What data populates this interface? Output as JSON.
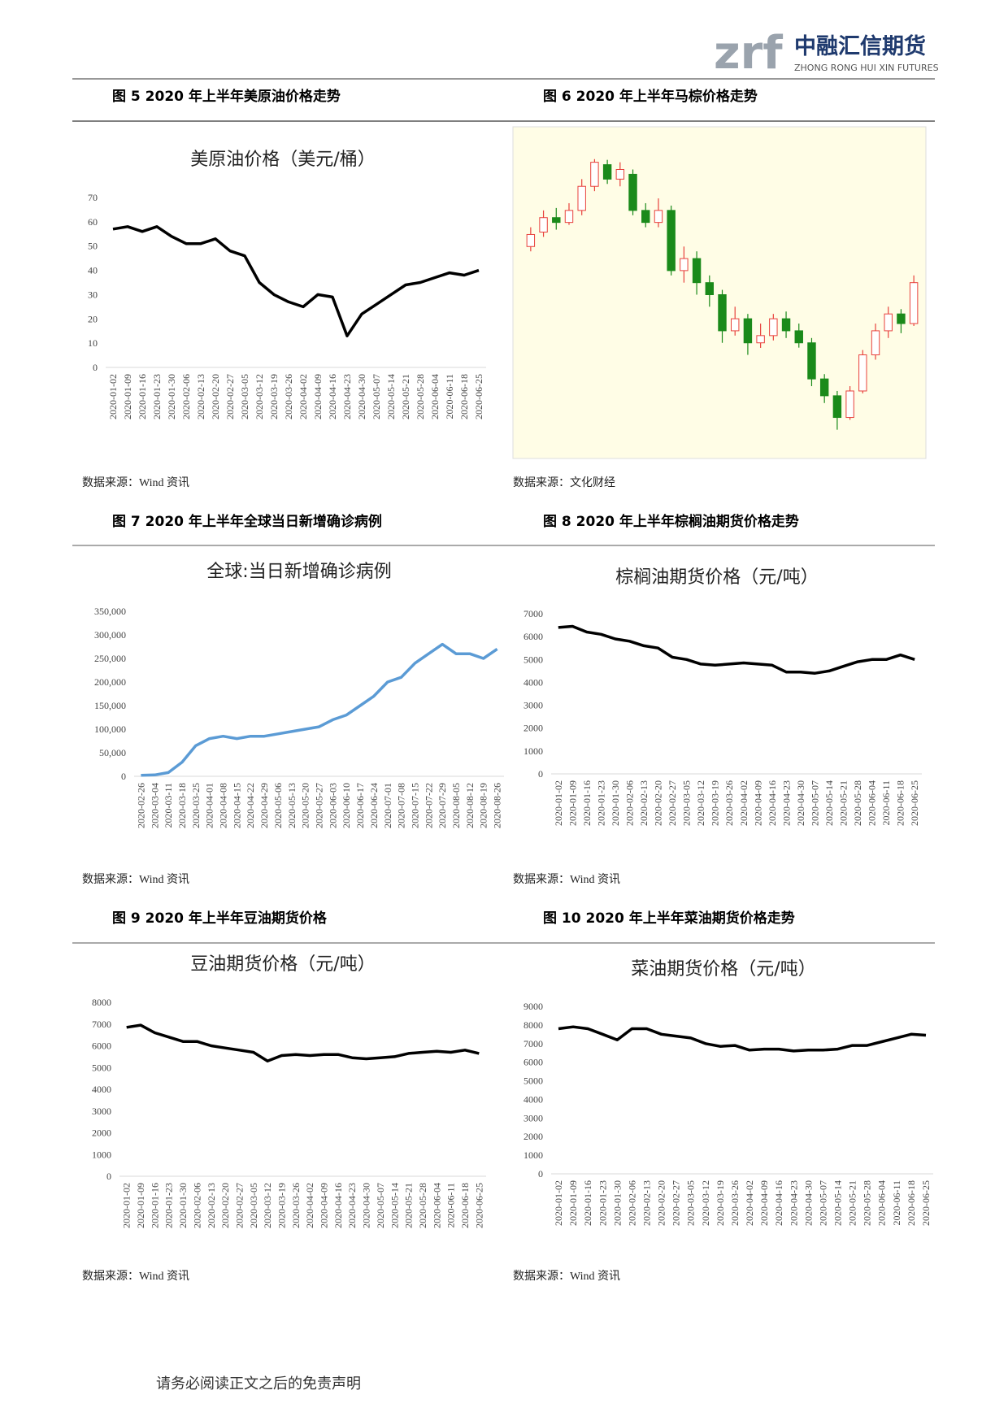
{
  "header": {
    "logo_mark": "zrf",
    "company": "中融汇信期货",
    "company_en": "ZHONG RONG HUI XIN FUTURES"
  },
  "figures": [
    {
      "caption": "图 5 2020 年上半年美原油价格走势",
      "source": "数据来源：Wind 资讯",
      "chart_data": {
        "type": "line",
        "title": "美原油价格（美元/桶）",
        "color": "#000000",
        "categories": [
          "2020-01-02",
          "2020-01-09",
          "2020-01-16",
          "2020-01-23",
          "2020-01-30",
          "2020-02-06",
          "2020-02-13",
          "2020-02-20",
          "2020-02-27",
          "2020-03-05",
          "2020-03-12",
          "2020-03-19",
          "2020-03-26",
          "2020-04-02",
          "2020-04-09",
          "2020-04-16",
          "2020-04-23",
          "2020-04-30",
          "2020-05-07",
          "2020-05-14",
          "2020-05-21",
          "2020-05-28",
          "2020-06-04",
          "2020-06-11",
          "2020-06-18",
          "2020-06-25"
        ],
        "values": [
          57,
          58,
          56,
          58,
          54,
          51,
          51,
          53,
          48,
          46,
          35,
          30,
          27,
          25,
          30,
          29,
          13,
          22,
          26,
          30,
          34,
          35,
          37,
          39,
          38,
          40
        ],
        "ylim": [
          0,
          70
        ],
        "yticks": [
          0,
          10,
          20,
          30,
          40,
          50,
          60,
          70
        ]
      }
    },
    {
      "caption": "图 6 2020 年上半年马棕价格走势",
      "source": "数据来源：文化财经",
      "chart_data": {
        "type": "candlestick",
        "up_color": "#e8413c",
        "down_color": "#1a8a1a",
        "background": "#fffde6",
        "open": [
          2700,
          2760,
          2820,
          2800,
          2850,
          2950,
          3040,
          2980,
          3000,
          2850,
          2800,
          2850,
          2600,
          2650,
          2550,
          2500,
          2350,
          2400,
          2300,
          2330,
          2400,
          2350,
          2300,
          2150,
          2080,
          1990,
          2100,
          2250,
          2350,
          2420,
          2380
        ],
        "close": [
          2750,
          2820,
          2800,
          2850,
          2950,
          3050,
          2980,
          3020,
          2850,
          2800,
          2850,
          2600,
          2650,
          2550,
          2500,
          2350,
          2400,
          2300,
          2330,
          2400,
          2350,
          2300,
          2150,
          2080,
          1990,
          2100,
          2250,
          2350,
          2420,
          2380,
          2550
        ],
        "high": [
          2780,
          2850,
          2860,
          2880,
          2980,
          3063,
          3060,
          3050,
          3020,
          2880,
          2900,
          2870,
          2700,
          2680,
          2580,
          2520,
          2450,
          2420,
          2380,
          2420,
          2430,
          2380,
          2320,
          2170,
          2100,
          2120,
          2270,
          2380,
          2450,
          2440,
          2580
        ],
        "low": [
          2680,
          2740,
          2770,
          2790,
          2830,
          2930,
          2960,
          2950,
          2830,
          2780,
          2780,
          2580,
          2550,
          2500,
          2450,
          2300,
          2330,
          2250,
          2279,
          2310,
          2320,
          2280,
          2120,
          2050,
          1939,
          1980,
          2090,
          2230,
          2320,
          2340,
          2370
        ],
        "ylim": [
          1850,
          3150
        ]
      }
    },
    {
      "caption": "图 7 2020 年上半年全球当日新增确诊病例",
      "source": "数据来源：Wind 资讯",
      "chart_data": {
        "type": "line",
        "title": "全球:当日新增确诊病例",
        "color": "#5b9bd5",
        "categories": [
          "2020-02-26",
          "2020-03-04",
          "2020-03-11",
          "2020-03-18",
          "2020-03-25",
          "2020-04-01",
          "2020-04-08",
          "2020-04-15",
          "2020-04-22",
          "2020-04-29",
          "2020-05-06",
          "2020-05-13",
          "2020-05-20",
          "2020-05-27",
          "2020-06-03",
          "2020-06-10",
          "2020-06-17",
          "2020-06-24",
          "2020-07-01",
          "2020-07-08",
          "2020-07-15",
          "2020-07-22",
          "2020-07-29",
          "2020-08-05",
          "2020-08-12",
          "2020-08-19",
          "2020-08-26"
        ],
        "values": [
          2000,
          3000,
          8000,
          30000,
          65000,
          80000,
          85000,
          80000,
          85000,
          85000,
          90000,
          95000,
          100000,
          105000,
          120000,
          130000,
          150000,
          170000,
          200000,
          210000,
          240000,
          260000,
          280000,
          260000,
          260000,
          250000,
          270000
        ],
        "ylim": [
          0,
          350000
        ],
        "yticks": [
          0,
          {
            "value": 50000,
            "label": "50,000"
          },
          {
            "value": 100000,
            "label": "100,000"
          },
          {
            "value": 150000,
            "label": "150,000"
          },
          {
            "value": 200000,
            "label": "200,000"
          },
          {
            "value": 250000,
            "label": "250,000"
          },
          {
            "value": 300000,
            "label": "300,000"
          },
          {
            "value": 350000,
            "label": "350,000"
          }
        ]
      }
    },
    {
      "caption": "图 8 2020 年上半年棕榈油期货价格走势",
      "source": "数据来源：Wind 资讯",
      "chart_data": {
        "type": "line",
        "title": "棕榈油期货价格（元/吨）",
        "color": "#000000",
        "categories": [
          "2020-01-02",
          "2020-01-09",
          "2020-01-16",
          "2020-01-23",
          "2020-01-30",
          "2020-02-06",
          "2020-02-13",
          "2020-02-20",
          "2020-02-27",
          "2020-03-05",
          "2020-03-12",
          "2020-03-19",
          "2020-03-26",
          "2020-04-02",
          "2020-04-09",
          "2020-04-16",
          "2020-04-23",
          "2020-04-30",
          "2020-05-07",
          "2020-05-14",
          "2020-05-21",
          "2020-05-28",
          "2020-06-04",
          "2020-06-11",
          "2020-06-18",
          "2020-06-25"
        ],
        "values": [
          6400,
          6450,
          6200,
          6100,
          5900,
          5800,
          5600,
          5500,
          5100,
          5000,
          4800,
          4750,
          4800,
          4850,
          4800,
          4750,
          4450,
          4450,
          4400,
          4500,
          4700,
          4900,
          5000,
          5000,
          5200,
          5000
        ],
        "ylim": [
          0,
          7000
        ],
        "yticks": [
          0,
          1000,
          2000,
          3000,
          4000,
          5000,
          6000,
          7000
        ]
      }
    },
    {
      "caption": "图 9 2020 年上半年豆油期货价格",
      "source": "数据来源：Wind 资讯",
      "chart_data": {
        "type": "line",
        "title": "豆油期货价格（元/吨）",
        "color": "#000000",
        "categories": [
          "2020-01-02",
          "2020-01-09",
          "2020-01-16",
          "2020-01-23",
          "2020-01-30",
          "2020-02-06",
          "2020-02-13",
          "2020-02-20",
          "2020-02-27",
          "2020-03-05",
          "2020-03-12",
          "2020-03-19",
          "2020-03-26",
          "2020-04-02",
          "2020-04-09",
          "2020-04-16",
          "2020-04-23",
          "2020-04-30",
          "2020-05-07",
          "2020-05-14",
          "2020-05-21",
          "2020-05-28",
          "2020-06-04",
          "2020-06-11",
          "2020-06-18",
          "2020-06-25"
        ],
        "values": [
          6850,
          6950,
          6600,
          6400,
          6200,
          6200,
          6000,
          5900,
          5800,
          5700,
          5300,
          5550,
          5600,
          5550,
          5600,
          5600,
          5450,
          5400,
          5450,
          5500,
          5650,
          5700,
          5750,
          5700,
          5800,
          5650
        ],
        "ylim": [
          0,
          8000
        ],
        "yticks": [
          0,
          1000,
          2000,
          3000,
          4000,
          5000,
          6000,
          7000,
          8000
        ]
      }
    },
    {
      "caption": "图 10 2020 年上半年菜油期货价格走势",
      "source": "数据来源：Wind 资讯",
      "chart_data": {
        "type": "line",
        "title": "菜油期货价格（元/吨）",
        "color": "#000000",
        "categories": [
          "2020-01-02",
          "2020-01-09",
          "2020-01-16",
          "2020-01-23",
          "2020-01-30",
          "2020-02-06",
          "2020-02-13",
          "2020-02-20",
          "2020-02-27",
          "2020-03-05",
          "2020-03-12",
          "2020-03-19",
          "2020-03-26",
          "2020-04-02",
          "2020-04-09",
          "2020-04-16",
          "2020-04-23",
          "2020-04-30",
          "2020-05-07",
          "2020-05-14",
          "2020-05-21",
          "2020-05-28",
          "2020-06-04",
          "2020-06-11",
          "2020-06-18",
          "2020-06-25"
        ],
        "values": [
          7800,
          7900,
          7800,
          7500,
          7200,
          7800,
          7800,
          7500,
          7400,
          7300,
          7000,
          6850,
          6900,
          6650,
          6700,
          6700,
          6600,
          6650,
          6650,
          6700,
          6900,
          6900,
          7100,
          7300,
          7500,
          7450
        ],
        "ylim": [
          0,
          9000
        ],
        "yticks": [
          0,
          1000,
          2000,
          3000,
          4000,
          5000,
          6000,
          7000,
          8000,
          9000
        ]
      }
    }
  ],
  "footer": {
    "disclaimer": "请务必阅读正文之后的免责声明"
  }
}
